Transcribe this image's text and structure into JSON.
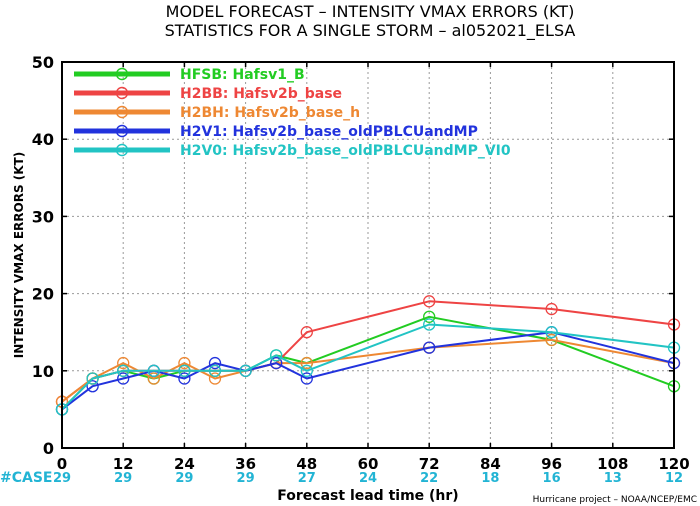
{
  "chart_data": {
    "type": "line",
    "title_line1": "MODEL FORECAST – INTENSITY VMAX ERRORS (KT)",
    "title_line2": "STATISTICS FOR A SINGLE STORM – al052021_ELSA",
    "xlabel": "Forecast lead time (hr)",
    "ylabel": "INTENSITY VMAX ERRORS (KT)",
    "ylabel_unit": "(KT)",
    "xlim": [
      0,
      120
    ],
    "ylim": [
      0,
      50
    ],
    "x_ticks": [
      0,
      12,
      24,
      36,
      48,
      60,
      72,
      84,
      96,
      108,
      120
    ],
    "y_ticks": [
      0,
      10,
      20,
      30,
      40,
      50
    ],
    "grid": true,
    "legend_position": "top-left",
    "case_label": "#CASE",
    "case_counts": [
      29,
      29,
      29,
      29,
      27,
      24,
      22,
      18,
      16,
      13,
      12
    ],
    "case_color": "#22b4d4",
    "footer": "Hurricane project – NOAA/NCEP/EMC",
    "series": [
      {
        "id": "HFSB",
        "label": "HFSB:",
        "name": "Hafsv1_B",
        "color": "#22cc22",
        "points": [
          [
            0,
            5
          ],
          [
            6,
            9
          ],
          [
            12,
            10
          ],
          [
            18,
            9
          ],
          [
            24,
            10
          ],
          [
            30,
            10
          ],
          [
            36,
            10
          ],
          [
            42,
            12
          ],
          [
            48,
            11
          ],
          [
            72,
            17
          ],
          [
            96,
            14
          ],
          [
            120,
            8
          ]
        ]
      },
      {
        "id": "H2BB",
        "label": "H2BB:",
        "name": "Hafsv2b_base",
        "color": "#ee4444",
        "points": [
          [
            0,
            6
          ],
          [
            6,
            9
          ],
          [
            12,
            10
          ],
          [
            18,
            10
          ],
          [
            24,
            10
          ],
          [
            30,
            10
          ],
          [
            36,
            10
          ],
          [
            42,
            11
          ],
          [
            48,
            15
          ],
          [
            72,
            19
          ],
          [
            96,
            18
          ],
          [
            120,
            16
          ]
        ]
      },
      {
        "id": "H2BH",
        "label": "H2BH:",
        "name": "Hafsv2b_base_h",
        "color": "#ee8833",
        "points": [
          [
            0,
            6
          ],
          [
            6,
            9
          ],
          [
            12,
            11
          ],
          [
            18,
            9
          ],
          [
            24,
            11
          ],
          [
            30,
            9
          ],
          [
            36,
            10
          ],
          [
            42,
            11
          ],
          [
            48,
            11
          ],
          [
            72,
            13
          ],
          [
            96,
            14
          ],
          [
            120,
            11
          ]
        ]
      },
      {
        "id": "H2V1",
        "label": "H2V1:",
        "name": "Hafsv2b_base_oldPBLCUandMP",
        "color": "#2233dd",
        "points": [
          [
            0,
            5
          ],
          [
            6,
            8
          ],
          [
            12,
            9
          ],
          [
            18,
            10
          ],
          [
            24,
            9
          ],
          [
            30,
            11
          ],
          [
            36,
            10
          ],
          [
            42,
            11
          ],
          [
            48,
            9
          ],
          [
            72,
            13
          ],
          [
            96,
            15
          ],
          [
            120,
            11
          ]
        ]
      },
      {
        "id": "H2V0",
        "label": "H2V0:",
        "name": "Hafsv2b_base_oldPBLCUandMP_VI0",
        "color": "#22c4c4",
        "points": [
          [
            0,
            5
          ],
          [
            6,
            9
          ],
          [
            12,
            10
          ],
          [
            18,
            10
          ],
          [
            24,
            10
          ],
          [
            30,
            10
          ],
          [
            36,
            10
          ],
          [
            42,
            12
          ],
          [
            48,
            10
          ],
          [
            72,
            16
          ],
          [
            96,
            15
          ],
          [
            120,
            13
          ]
        ]
      }
    ]
  }
}
